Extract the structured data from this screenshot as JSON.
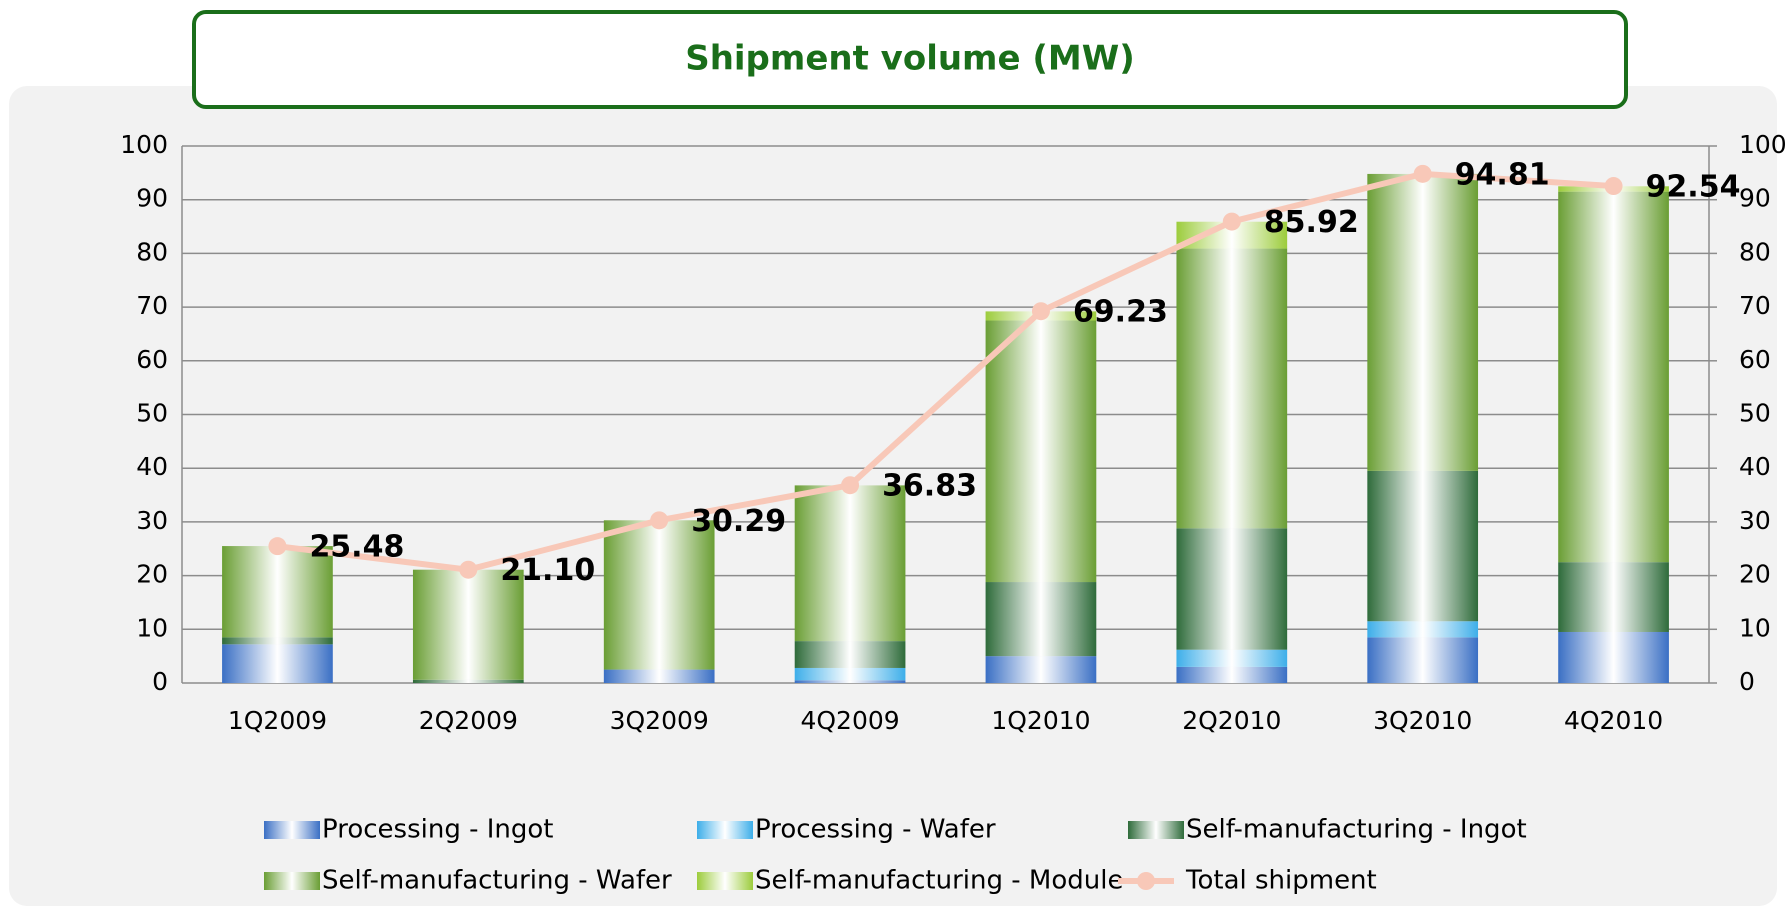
{
  "chart_data": {
    "type": "bar",
    "stacked": true,
    "title": "Shipment volume (MW)",
    "categories": [
      "1Q2009",
      "2Q2009",
      "3Q2009",
      "4Q2009",
      "1Q2010",
      "2Q2010",
      "3Q2010",
      "4Q2010"
    ],
    "series": [
      {
        "name": "Processing - Ingot",
        "color": "#3a6fc4",
        "values": [
          7.2,
          0,
          2.5,
          0.5,
          5.0,
          3.0,
          8.5,
          9.5
        ]
      },
      {
        "name": "Processing - Wafer",
        "color": "#3daee9",
        "values": [
          0,
          0,
          0,
          2.3,
          0,
          3.2,
          3.0,
          0
        ]
      },
      {
        "name": "Self-manufacturing - Ingot",
        "color": "#2e6b3a",
        "values": [
          1.3,
          0.6,
          0,
          5.0,
          13.8,
          22.6,
          28.0,
          13.0
        ]
      },
      {
        "name": "Self-manufacturing - Wafer",
        "color": "#6a9e34",
        "values": [
          17.0,
          20.5,
          27.8,
          29.0,
          48.7,
          52.1,
          55.3,
          69.0
        ]
      },
      {
        "name": "Self-manufacturing - Module",
        "color": "#9ccc3c",
        "values": [
          0,
          0,
          0,
          0,
          1.7,
          5.0,
          0,
          1.0
        ]
      },
      {
        "name": "Total shipment",
        "type": "line",
        "axis": "y2",
        "color": "#f8c8b8",
        "values": [
          25.48,
          21.1,
          30.29,
          36.83,
          69.23,
          85.92,
          94.81,
          92.54
        ],
        "value_labels": [
          "25.48",
          "21.10",
          "30.29",
          "36.83",
          "69.23",
          "85.92",
          "94.81",
          "92.54"
        ]
      }
    ],
    "ylim": [
      0,
      100
    ],
    "yticks": [
      0,
      10,
      20,
      30,
      40,
      50,
      60,
      70,
      80,
      90,
      100
    ],
    "y2lim": [
      0,
      100
    ],
    "y2ticks": [
      0,
      10,
      20,
      30,
      40,
      50,
      60,
      70,
      80,
      90,
      100
    ],
    "grid": true,
    "legend": "bottom"
  }
}
